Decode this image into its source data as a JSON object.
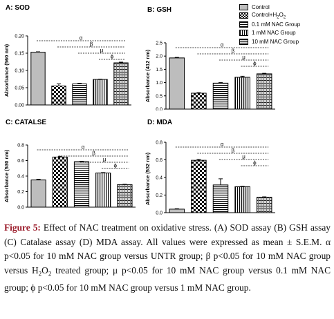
{
  "chart_data": [
    {
      "type": "bar",
      "title": "A: SOD",
      "ylabel": "Absorbance (560 nm)",
      "ylim": [
        0,
        0.2
      ],
      "ticks": [
        "0.00",
        "0.05",
        "0.10",
        "0.15",
        "0.20"
      ],
      "values": [
        0.153,
        0.055,
        0.061,
        0.074,
        0.122
      ],
      "errors": [
        0.001,
        0.006,
        0.002,
        0.001,
        0.002
      ],
      "sig": [
        "α",
        "β",
        "μ",
        "ϕ"
      ]
    },
    {
      "type": "bar",
      "title": "B: GSH",
      "ylabel": "Absorbance (412 nm)",
      "ylim": [
        0,
        2.5
      ],
      "ticks": [
        "0.0",
        "0.5",
        "1.0",
        "1.5",
        "2.0",
        "2.5"
      ],
      "values": [
        1.93,
        0.6,
        0.98,
        1.2,
        1.33
      ],
      "errors": [
        0.02,
        0.02,
        0.02,
        0.04,
        0.02
      ],
      "sig": [
        "α",
        "β",
        "μ",
        "ϕ"
      ]
    },
    {
      "type": "bar",
      "title": "C: CATALSE",
      "ylabel": "Absorbance (530 nm)",
      "ylim": [
        0,
        0.8
      ],
      "ticks": [
        "0.0",
        "0.2",
        "0.4",
        "0.6",
        "0.8"
      ],
      "values": [
        0.35,
        0.645,
        0.585,
        0.44,
        0.29
      ],
      "errors": [
        0.01,
        0.01,
        0.005,
        0.005,
        0.005
      ],
      "sig": [
        "α",
        "β",
        "μ",
        "ϕ"
      ]
    },
    {
      "type": "bar",
      "title": "D: MDA",
      "ylabel": "Absorbance (532 nm)",
      "ylim": [
        0,
        0.8
      ],
      "ticks": [
        "0.0",
        "0.2",
        "0.4",
        "0.6",
        "0.8"
      ],
      "values": [
        0.04,
        0.595,
        0.315,
        0.295,
        0.175
      ],
      "errors": [
        0.005,
        0.01,
        0.07,
        0.005,
        0.005
      ],
      "sig": [
        "α",
        "β",
        "μ",
        "ϕ"
      ]
    }
  ],
  "legend": {
    "items": [
      {
        "label": "Control"
      },
      {
        "label_main": "Control+H",
        "label_sub": "2",
        "label_rest": "O",
        "label_sub2": "2"
      },
      {
        "label": "0.1 mM NAC Group"
      },
      {
        "label": "1 mM NAC Group"
      },
      {
        "label": "10 mM NAC Group"
      }
    ]
  },
  "caption": {
    "figure_label": "Figure 5:",
    "part1": " Effect of NAC treatment on oxidative stress. (A) SOD assay (B) GSH assay (C) Catalase assay (D) MDA assay. All values were expressed as mean ± S.E.M. α p<0.05 for 10 mM NAC group versus UNTR group; β p<0.05 for 10 mM NAC group versus H",
    "sub1": "2",
    "mid": "O",
    "sub2": "2",
    "part2": " treated group; μ p<0.05 for 10 mM NAC group versus 0.1 mM NAC group; ϕ p<0.05 for 10 mM NAC group versus 1 mM NAC group."
  }
}
